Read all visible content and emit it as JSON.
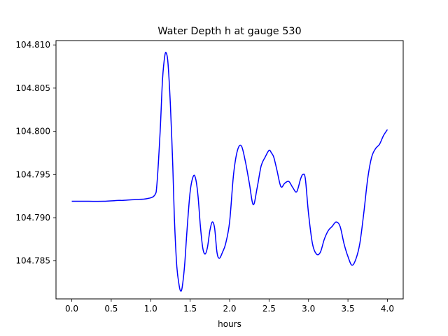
{
  "chart_data": {
    "type": "line",
    "title": "Water Depth h at gauge 530",
    "xlabel": "hours",
    "ylabel": "",
    "xlim": [
      -0.2,
      4.2
    ],
    "ylim": [
      104.7806,
      104.8105
    ],
    "xticks": [
      0.0,
      0.5,
      1.0,
      1.5,
      2.0,
      2.5,
      3.0,
      3.5,
      4.0
    ],
    "xtick_labels": [
      "0.0",
      "0.5",
      "1.0",
      "1.5",
      "2.0",
      "2.5",
      "3.0",
      "3.5",
      "4.0"
    ],
    "yticks": [
      104.785,
      104.79,
      104.795,
      104.8,
      104.805,
      104.81
    ],
    "ytick_labels": [
      "104.785",
      "104.790",
      "104.795",
      "104.800",
      "104.805",
      "104.810"
    ],
    "grid": false,
    "legend": "none",
    "series": [
      {
        "color": "#0000ff",
        "x": [
          0.0,
          0.2,
          0.4,
          0.6,
          0.65,
          0.8,
          0.95,
          1.05,
          1.08,
          1.12,
          1.15,
          1.18,
          1.2,
          1.22,
          1.25,
          1.28,
          1.3,
          1.33,
          1.36,
          1.38,
          1.4,
          1.43,
          1.46,
          1.5,
          1.54,
          1.57,
          1.6,
          1.63,
          1.66,
          1.69,
          1.72,
          1.75,
          1.78,
          1.81,
          1.84,
          1.87,
          1.91,
          1.95,
          2.0,
          2.05,
          2.1,
          2.15,
          2.2,
          2.25,
          2.3,
          2.35,
          2.4,
          2.45,
          2.5,
          2.53,
          2.56,
          2.6,
          2.65,
          2.7,
          2.75,
          2.8,
          2.85,
          2.9,
          2.93,
          2.96,
          3.0,
          3.05,
          3.1,
          3.15,
          3.2,
          3.25,
          3.3,
          3.35,
          3.4,
          3.45,
          3.5,
          3.55,
          3.6,
          3.65,
          3.7,
          3.75,
          3.8,
          3.85,
          3.9,
          3.95,
          4.0
        ],
        "y": [
          104.7919,
          104.7919,
          104.7919,
          104.792,
          104.792,
          104.7921,
          104.7922,
          104.7926,
          104.794,
          104.8,
          104.806,
          104.8088,
          104.809,
          104.8078,
          104.803,
          104.796,
          104.79,
          104.7845,
          104.7822,
          104.7815,
          104.782,
          104.7845,
          104.7885,
          104.793,
          104.7948,
          104.7945,
          104.7925,
          104.789,
          104.7865,
          104.7858,
          104.7866,
          104.7885,
          104.7895,
          104.7888,
          104.786,
          104.7853,
          104.786,
          104.787,
          104.7895,
          104.795,
          104.7978,
          104.7983,
          104.7965,
          104.794,
          104.7915,
          104.7935,
          104.796,
          104.797,
          104.7978,
          104.7975,
          104.797,
          104.7955,
          104.7936,
          104.794,
          104.7942,
          104.7935,
          104.793,
          104.7945,
          104.795,
          104.7945,
          104.7905,
          104.787,
          104.7858,
          104.786,
          104.7875,
          104.7885,
          104.789,
          104.7895,
          104.789,
          104.787,
          104.7855,
          104.7845,
          104.7852,
          104.787,
          104.7905,
          104.7945,
          104.797,
          104.798,
          104.7985,
          104.7995,
          104.8002
        ]
      }
    ]
  }
}
